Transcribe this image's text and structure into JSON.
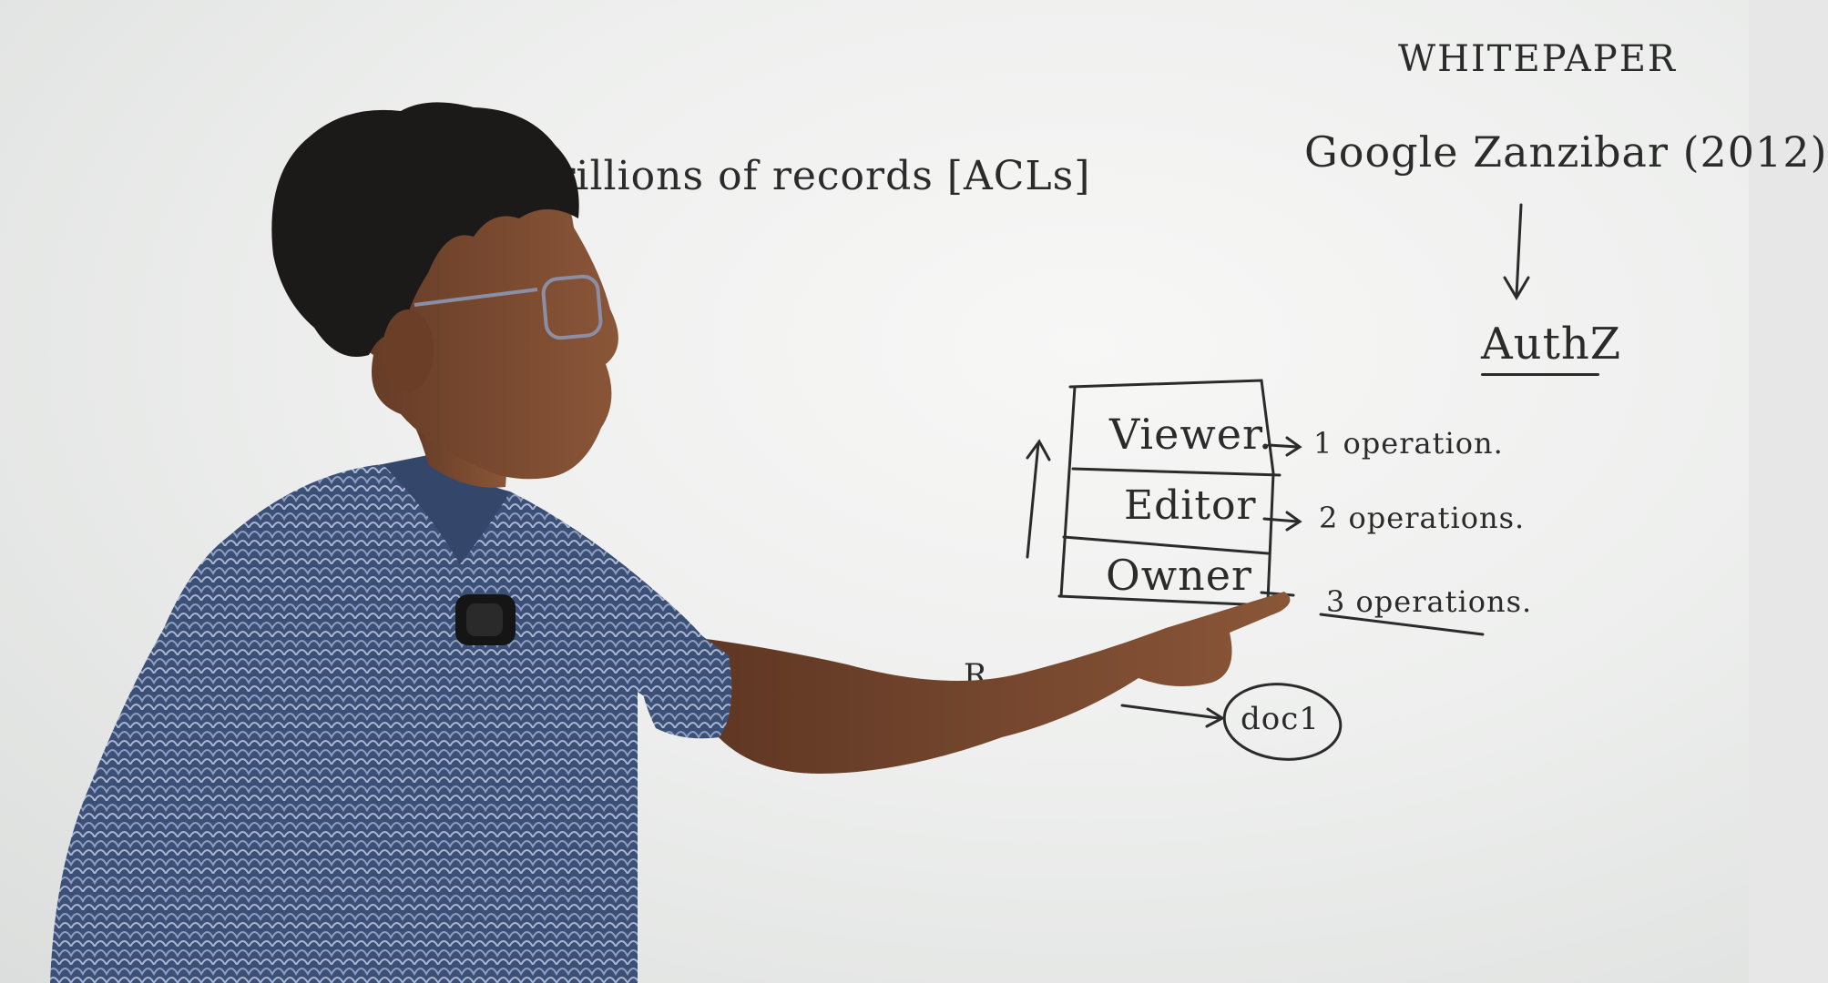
{
  "board": {
    "headline": "Trillions of records [ACLs]",
    "whitepaper_title": "WHITEPAPER",
    "paper_name": "Google Zanzibar (2012)",
    "product_name": "AuthZ",
    "roles": [
      {
        "label": "Viewer.",
        "operations": "1 operation."
      },
      {
        "label": "Editor",
        "operations": "2 operations."
      },
      {
        "label": "Owner",
        "operations": "3 operations."
      }
    ],
    "node_label": "R",
    "document_label": "doc1"
  },
  "colors": {
    "ink": "#2b2b2b",
    "whiteboard": "#eeefee",
    "shirt": "#3c4f76",
    "skin": "#7a4a30",
    "hair": "#1c1a19"
  }
}
